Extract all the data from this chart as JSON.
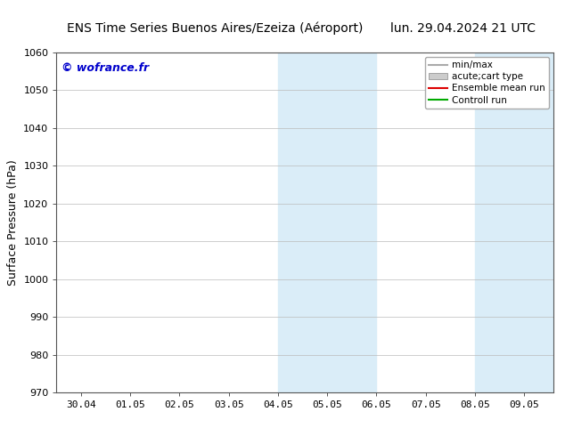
{
  "title": "ENS Time Series Buenos Aires/Ezeiza (Aéroport)",
  "date_label": "lun. 29.04.2024 21 UTC",
  "ylabel": "Surface Pressure (hPa)",
  "watermark": "© wofrance.fr",
  "ylim": [
    970,
    1060
  ],
  "yticks": [
    970,
    980,
    990,
    1000,
    1010,
    1020,
    1030,
    1040,
    1050,
    1060
  ],
  "x_labels": [
    "30.04",
    "01.05",
    "02.05",
    "03.05",
    "04.05",
    "05.05",
    "06.05",
    "07.05",
    "08.05",
    "09.05"
  ],
  "x_values": [
    0,
    1,
    2,
    3,
    4,
    5,
    6,
    7,
    8,
    9
  ],
  "shaded_regions": [
    {
      "xmin": 4.0,
      "xmax": 5.0,
      "color": "#daedf8"
    },
    {
      "xmin": 5.0,
      "xmax": 6.0,
      "color": "#daedf8"
    },
    {
      "xmin": 8.0,
      "xmax": 9.0,
      "color": "#daedf8"
    },
    {
      "xmin": 9.0,
      "xmax": 9.6,
      "color": "#daedf8"
    }
  ],
  "legend_entries": [
    {
      "label": "min/max",
      "type": "line",
      "color": "#aaaaaa",
      "linewidth": 1.5
    },
    {
      "label": "acute;cart type",
      "type": "patch",
      "color": "#cccccc"
    },
    {
      "label": "Ensemble mean run",
      "type": "line",
      "color": "#dd0000",
      "linewidth": 1.5
    },
    {
      "label": "Controll run",
      "type": "line",
      "color": "#00aa00",
      "linewidth": 1.5
    }
  ],
  "background_color": "#ffffff",
  "plot_bg_color": "#ffffff",
  "title_fontsize": 10,
  "date_fontsize": 10,
  "tick_fontsize": 8,
  "ylabel_fontsize": 9,
  "watermark_color": "#0000cc",
  "watermark_fontsize": 9,
  "grid_color": "#bbbbbb",
  "spine_color": "#555555"
}
